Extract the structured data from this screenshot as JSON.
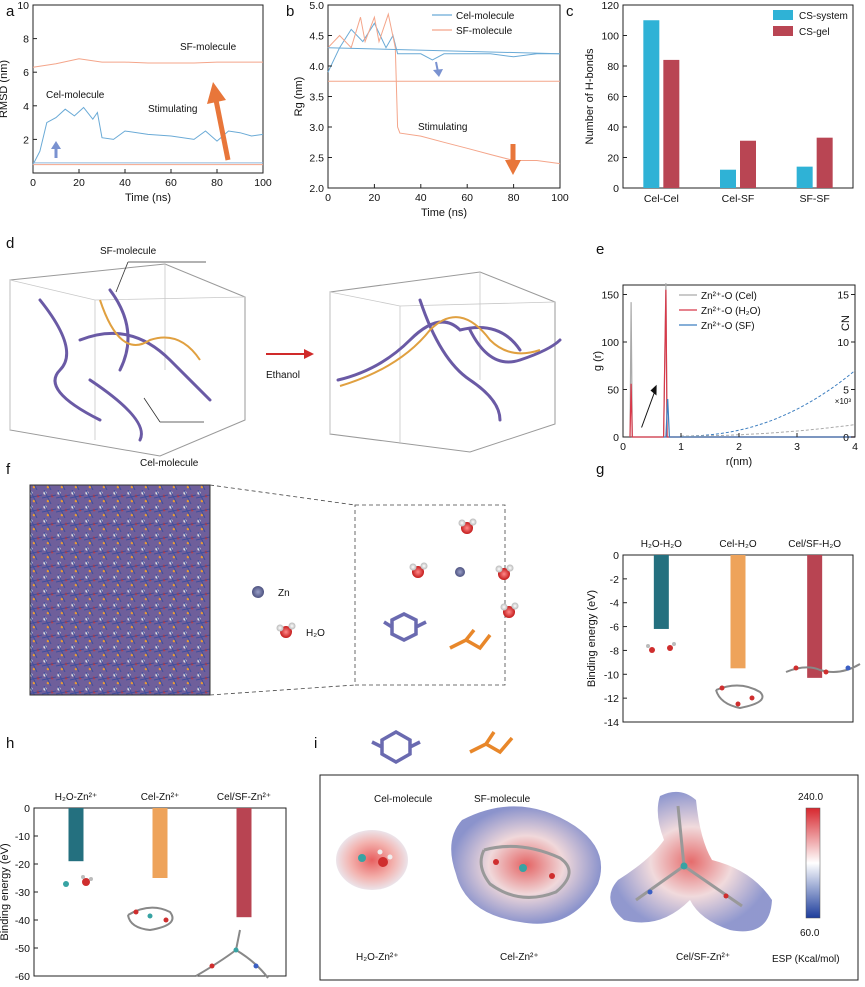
{
  "panel_labels": {
    "a": "a",
    "b": "b",
    "c": "c",
    "d": "d",
    "e": "e",
    "f": "f",
    "g": "g",
    "h": "h",
    "i": "i"
  },
  "chart_data": [
    {
      "id": "a",
      "type": "line",
      "xlabel": "Time (ns)",
      "ylabel": "RMSD (nm)",
      "xlim": [
        0,
        100
      ],
      "ylim": [
        0,
        10
      ],
      "xticks": [
        0,
        20,
        40,
        60,
        80,
        100
      ],
      "yticks": [
        2,
        4,
        6,
        8,
        10
      ],
      "annotations": [
        "SF-molecule",
        "Cel-molecule",
        "Stimulating"
      ],
      "series": [
        {
          "color": "#f4a58a",
          "x": [
            0,
            10,
            20,
            30,
            40,
            50,
            60,
            70,
            80,
            90,
            100
          ],
          "y": [
            6.3,
            6.5,
            6.8,
            6.6,
            6.6,
            6.55,
            6.55,
            6.55,
            6.6,
            6.6,
            6.6
          ]
        },
        {
          "color": "#6aaad6",
          "x": [
            0,
            3,
            6,
            10,
            14,
            18,
            22,
            26,
            28,
            30,
            35,
            40,
            50,
            60,
            70,
            75,
            80,
            85,
            90,
            95,
            100
          ],
          "y": [
            0.5,
            1.3,
            3.0,
            3.3,
            3.8,
            3.4,
            3.9,
            3.2,
            3.6,
            2.1,
            2.0,
            2.5,
            2.3,
            2.2,
            2.0,
            2.5,
            1.9,
            2.5,
            2.4,
            2.2,
            2.3
          ]
        },
        {
          "color": "#8fb9dc",
          "x": [
            0,
            100
          ],
          "y": [
            0.6,
            0.6
          ]
        },
        {
          "color": "#f4a58a",
          "x": [
            0,
            100
          ],
          "y": [
            0.5,
            0.5
          ]
        }
      ]
    },
    {
      "id": "b",
      "type": "line",
      "xlabel": "Time (ns)",
      "ylabel": "Rg (nm)",
      "xlim": [
        0,
        100
      ],
      "ylim": [
        2.0,
        5.0
      ],
      "xticks": [
        0,
        20,
        40,
        60,
        80,
        100
      ],
      "yticks": [
        2.0,
        2.5,
        3.0,
        3.5,
        4.0,
        4.5,
        5.0
      ],
      "legend": [
        "Cel-molecule",
        "SF-molecule"
      ],
      "annotations": [
        "Stimulating"
      ],
      "series": [
        {
          "name": "Cel-molecule",
          "color": "#6aaad6",
          "x": [
            0,
            5,
            10,
            15,
            20,
            25,
            28,
            30,
            40,
            45,
            50,
            60,
            70,
            80,
            90,
            100
          ],
          "y": [
            3.9,
            4.3,
            4.6,
            4.4,
            4.7,
            4.3,
            4.5,
            4.2,
            4.2,
            4.1,
            4.2,
            4.2,
            4.2,
            4.15,
            4.2,
            4.2
          ]
        },
        {
          "name": "SF-molecule",
          "color": "#f4a58a",
          "x": [
            0,
            5,
            10,
            14,
            16,
            20,
            22,
            26,
            29,
            30,
            31,
            40,
            50,
            60,
            70,
            80,
            90,
            100
          ],
          "y": [
            4.3,
            4.5,
            4.3,
            4.8,
            4.4,
            4.8,
            4.4,
            4.85,
            4.3,
            3.0,
            2.9,
            2.85,
            2.75,
            2.65,
            2.55,
            2.45,
            2.45,
            2.4
          ]
        },
        {
          "color": "#6aaad6",
          "x": [
            0,
            100
          ],
          "y": [
            4.3,
            4.2
          ]
        },
        {
          "color": "#f4a58a",
          "x": [
            0,
            100
          ],
          "y": [
            3.75,
            3.75
          ]
        }
      ]
    },
    {
      "id": "c",
      "type": "bar",
      "ylabel": "Number of H-bonds",
      "ylim": [
        0,
        120
      ],
      "yticks": [
        0,
        20,
        40,
        60,
        80,
        100,
        120
      ],
      "categories": [
        "Cel-Cel",
        "Cel-SF",
        "SF-SF"
      ],
      "series": [
        {
          "name": "CS-system",
          "color": "#2fb2d6",
          "values": [
            110,
            12,
            14
          ]
        },
        {
          "name": "CS-gel",
          "color": "#b94553",
          "values": [
            84,
            31,
            33
          ]
        }
      ]
    },
    {
      "id": "e",
      "type": "line",
      "xlabel": "r(nm)",
      "ylabel": "g (r)",
      "y2label": "CN",
      "y2note": "×10³",
      "xlim": [
        0,
        4
      ],
      "ylim": [
        0,
        160
      ],
      "y2lim": [
        0,
        16
      ],
      "xticks": [
        0,
        1,
        2,
        3,
        4
      ],
      "yticks": [
        0,
        50,
        100,
        150
      ],
      "y2ticks": [
        0,
        5,
        10,
        15
      ],
      "series": [
        {
          "name": "Zn²⁺-O (Cel)",
          "color": "#aaaaaa",
          "x": [
            0.12,
            0.14,
            0.16,
            0.2,
            0.7,
            0.74,
            0.76,
            0.8,
            4
          ],
          "y": [
            0,
            142,
            0,
            0,
            0,
            162,
            0,
            0,
            0
          ]
        },
        {
          "name": "Zn²⁺-O (H₂O)",
          "color": "#d8394a",
          "x": [
            0.12,
            0.14,
            0.16,
            0.2,
            0.7,
            0.74,
            0.76,
            0.8,
            4
          ],
          "y": [
            0,
            56,
            0,
            0,
            0,
            155,
            0,
            0,
            0
          ]
        },
        {
          "name": "Zn²⁺-O (SF)",
          "color": "#3e7fc0",
          "x": [
            0.7,
            0.74,
            0.77,
            0.8,
            4
          ],
          "y": [
            0,
            0,
            40,
            0,
            0
          ]
        }
      ]
    },
    {
      "id": "g",
      "type": "bar",
      "ylabel": "Binding energy (eV)",
      "ylim": [
        -14,
        0
      ],
      "yticks": [
        0,
        -2,
        -4,
        -6,
        -8,
        -10,
        -12,
        -14
      ],
      "categories": [
        "H₂O-H₂O",
        "Cel-H₂O",
        "Cel/SF-H₂O"
      ],
      "series": [
        {
          "colors": [
            "#24707f",
            "#eea35a",
            "#b84452"
          ],
          "values": [
            -6.2,
            -9.5,
            -10.3
          ]
        }
      ]
    },
    {
      "id": "h",
      "type": "bar",
      "ylabel": "Binding energy (eV)",
      "ylim": [
        -60,
        0
      ],
      "yticks": [
        0,
        -10,
        -20,
        -30,
        -40,
        -50,
        -60
      ],
      "categories": [
        "H₂O-Zn²⁺",
        "Cel-Zn²⁺",
        "Cel/SF-Zn²⁺"
      ],
      "series": [
        {
          "colors": [
            "#24707f",
            "#eea35a",
            "#b84452"
          ],
          "values": [
            -19,
            -25,
            -39
          ]
        }
      ]
    }
  ],
  "panel_d": {
    "sf_label": "SF-molecule",
    "cel_label": "Cel-molecule",
    "arrow_label": "Ethanol"
  },
  "panel_f": {
    "legend_zn": "Zn",
    "legend_h2o": "H₂O",
    "cel_label": "Cel-molecule",
    "sf_label": "SF-molecule"
  },
  "panel_i": {
    "labels": [
      "H₂O-Zn²⁺",
      "Cel-Zn²⁺",
      "Cel/SF-Zn²⁺"
    ],
    "colorbar_max": "240.0",
    "colorbar_min": "60.0",
    "colorbar_label": "ESP (Kcal/mol)"
  }
}
